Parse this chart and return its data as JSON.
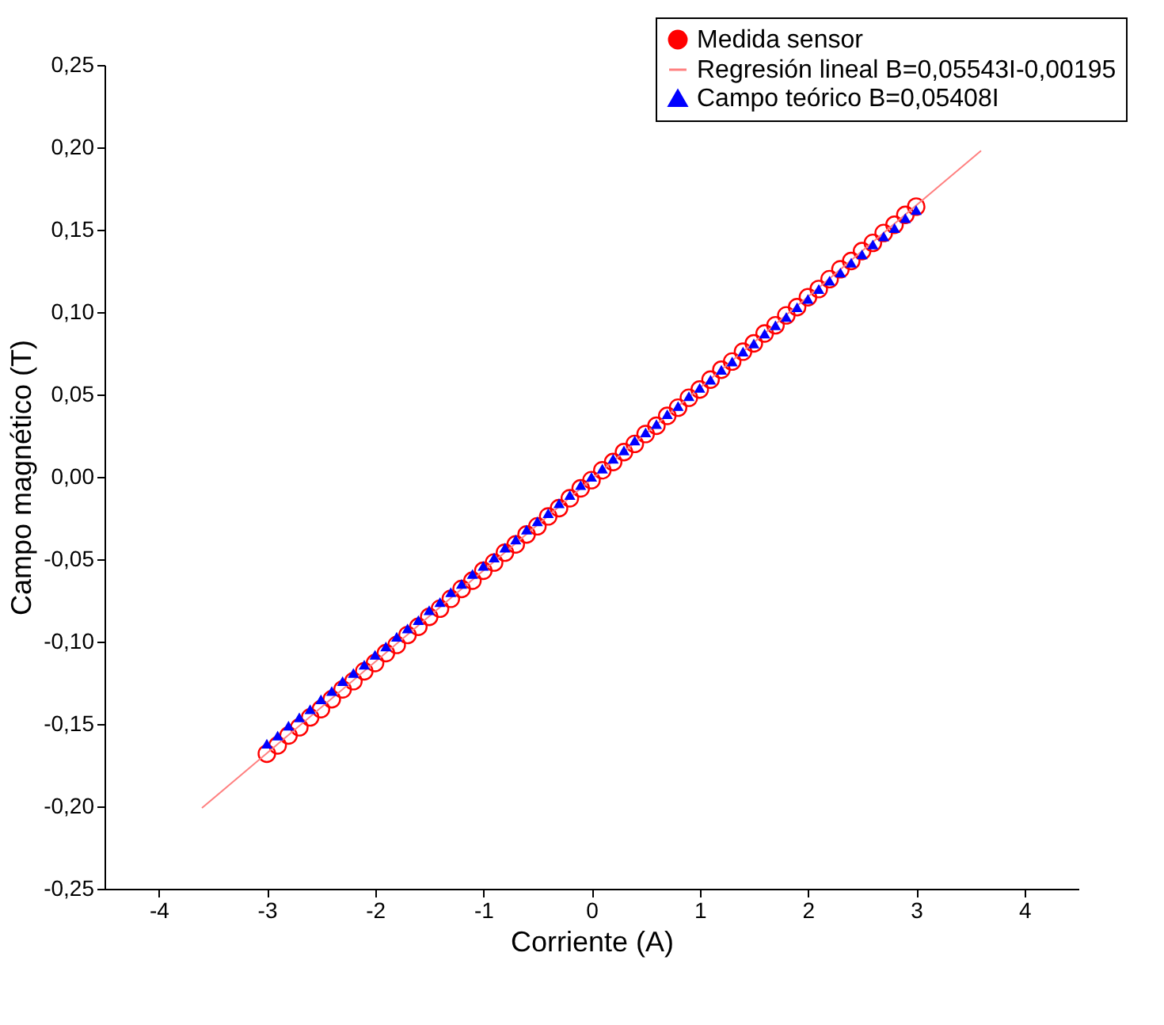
{
  "chart_data": {
    "type": "scatter",
    "xlabel": "Corriente (A)",
    "ylabel": "Campo magnético (T)",
    "x": [
      -3.0,
      -2.9,
      -2.8,
      -2.7,
      -2.6,
      -2.5,
      -2.4,
      -2.3,
      -2.2,
      -2.1,
      -2.0,
      -1.9,
      -1.8,
      -1.7,
      -1.6,
      -1.5,
      -1.4,
      -1.3,
      -1.2,
      -1.1,
      -1.0,
      -0.9,
      -0.8,
      -0.7,
      -0.6,
      -0.5,
      -0.4,
      -0.3,
      -0.2,
      -0.1,
      0.0,
      0.1,
      0.2,
      0.3,
      0.4,
      0.5,
      0.6,
      0.7,
      0.8,
      0.9,
      1.0,
      1.1,
      1.2,
      1.3,
      1.4,
      1.5,
      1.6,
      1.7,
      1.8,
      1.9,
      2.0,
      2.1,
      2.2,
      2.3,
      2.4,
      2.5,
      2.6,
      2.7,
      2.8,
      2.9,
      3.0
    ],
    "series": [
      {
        "name": "Medida sensor",
        "marker": "circle",
        "color": "#ff0000",
        "values": [
          -0.168,
          -0.163,
          -0.157,
          -0.152,
          -0.146,
          -0.141,
          -0.135,
          -0.129,
          -0.124,
          -0.118,
          -0.113,
          -0.107,
          -0.102,
          -0.096,
          -0.091,
          -0.085,
          -0.08,
          -0.074,
          -0.068,
          -0.063,
          -0.057,
          -0.052,
          -0.046,
          -0.041,
          -0.035,
          -0.03,
          -0.024,
          -0.019,
          -0.013,
          -0.007,
          -0.002,
          0.004,
          0.009,
          0.015,
          0.02,
          0.026,
          0.031,
          0.037,
          0.042,
          0.048,
          0.053,
          0.059,
          0.065,
          0.07,
          0.076,
          0.081,
          0.087,
          0.092,
          0.098,
          0.103,
          0.109,
          0.114,
          0.12,
          0.126,
          0.131,
          0.137,
          0.142,
          0.148,
          0.153,
          0.159,
          0.164
        ]
      },
      {
        "name": "Regresión lineal B=0,05543I-0,00195",
        "type": "line",
        "marker": "none",
        "line_style": "solid",
        "color": "#ff8080",
        "x": [
          -3.6,
          3.6
        ],
        "values": [
          -0.201,
          0.198
        ]
      },
      {
        "name": "Campo teórico B=0,05408I",
        "marker": "triangle",
        "color": "#0000ff",
        "values": [
          -0.162,
          -0.157,
          -0.151,
          -0.146,
          -0.141,
          -0.135,
          -0.13,
          -0.124,
          -0.119,
          -0.114,
          -0.108,
          -0.103,
          -0.097,
          -0.092,
          -0.087,
          -0.081,
          -0.076,
          -0.07,
          -0.065,
          -0.059,
          -0.054,
          -0.049,
          -0.043,
          -0.038,
          -0.032,
          -0.027,
          -0.022,
          -0.016,
          -0.011,
          -0.005,
          0.0,
          0.005,
          0.011,
          0.016,
          0.022,
          0.027,
          0.032,
          0.038,
          0.043,
          0.049,
          0.054,
          0.059,
          0.065,
          0.07,
          0.076,
          0.081,
          0.087,
          0.092,
          0.097,
          0.103,
          0.108,
          0.114,
          0.119,
          0.124,
          0.13,
          0.135,
          0.141,
          0.146,
          0.151,
          0.157,
          0.162
        ]
      }
    ],
    "xlim": [
      -4.5,
      4.5
    ],
    "xticks": [
      -4,
      -3,
      -2,
      -1,
      0,
      1,
      2,
      3,
      4
    ],
    "ylim": [
      -0.25,
      0.25
    ],
    "yticks": [
      {
        "value": -0.25,
        "label": "-0,25"
      },
      {
        "value": -0.2,
        "label": "-0,20"
      },
      {
        "value": -0.15,
        "label": "-0,15"
      },
      {
        "value": -0.1,
        "label": "-0,10"
      },
      {
        "value": -0.05,
        "label": "-0,05"
      },
      {
        "value": 0,
        "label": "0,00"
      },
      {
        "value": 0.05,
        "label": "0,05"
      },
      {
        "value": 0.1,
        "label": "0,10"
      },
      {
        "value": 0.15,
        "label": "0,15"
      },
      {
        "value": 0.2,
        "label": "0,20"
      },
      {
        "value": 0.25,
        "label": "0,25"
      }
    ],
    "grid": false,
    "legend": "top right"
  }
}
